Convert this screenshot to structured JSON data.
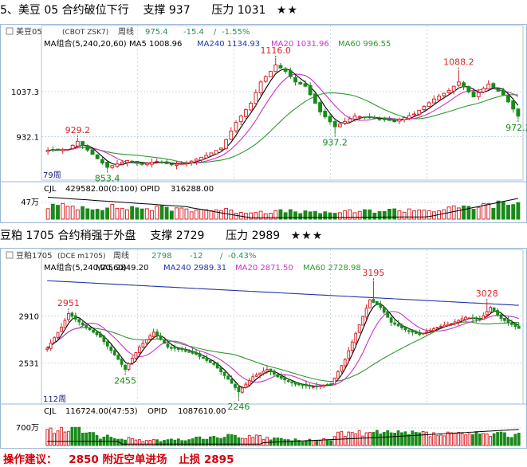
{
  "sections": [
    {
      "title_line": "5、美豆 05 合约破位下行",
      "support_text": "支撑 937",
      "resistance_text": "压力 1031",
      "stars": "★★"
    },
    {
      "title_line": "豆粕 1705 合约稍强于外盘",
      "support_text": "支撑 2729",
      "resistance_text": "压力 2989",
      "stars": "★★★"
    }
  ],
  "footer": {
    "label": "操作建议：",
    "advice": "2850 附近空单进场",
    "stop": "止损 2895"
  },
  "colors": {
    "up": "#d8262a",
    "down": "#1a8a1a",
    "ma5": "#000000",
    "ma20": "#cc33cc",
    "ma60": "#2d9a2d",
    "ma240": "#2233aa",
    "grid": "#9ab7d6",
    "chg": "#2e8b57"
  },
  "chart_data": [
    {
      "type": "candlestick",
      "instrument_label": "美豆05",
      "exchange_code": "(CBOT ZSK7)",
      "period": "周线",
      "last": "975.4",
      "change": "-15.4",
      "change_pct": "-1.55%",
      "ma_group_label": "MA组合(5,240,20,60)",
      "ma_labels": [
        "MA5 1008.96",
        "MA240 1134.93",
        "MA20 1031.96",
        "MA60 996.55"
      ],
      "y_ticks": [
        "1037.3",
        "932.1"
      ],
      "ylim": [
        830,
        1140
      ],
      "count_label": "79周",
      "annotations": [
        {
          "text": "929.2",
          "value": 929.2,
          "bar": 6,
          "kind": "high"
        },
        {
          "text": "853.4",
          "value": 853.4,
          "bar": 12,
          "kind": "low"
        },
        {
          "text": "1116.0",
          "value": 1116,
          "bar": 46,
          "kind": "high"
        },
        {
          "text": "937.2",
          "value": 937.2,
          "bar": 58,
          "kind": "low"
        },
        {
          "text": "1088.2",
          "value": 1088.2,
          "bar": 83,
          "kind": "high"
        },
        {
          "text": "972.2",
          "value": 972.2,
          "bar": 95,
          "kind": "low"
        }
      ],
      "volume_label": "CJL",
      "volume_value": "429582.00(0:100)",
      "oi_label": "OPID",
      "oi_value": "316288.00",
      "volume_tick": "47万",
      "key_points": [
        [
          0,
          900
        ],
        [
          4,
          902
        ],
        [
          6,
          921
        ],
        [
          10,
          880
        ],
        [
          12,
          860
        ],
        [
          16,
          876
        ],
        [
          19,
          867
        ],
        [
          22,
          874
        ],
        [
          25,
          866
        ],
        [
          28,
          870
        ],
        [
          32,
          888
        ],
        [
          35,
          905
        ],
        [
          38,
          965
        ],
        [
          41,
          1010
        ],
        [
          43,
          1060
        ],
        [
          45,
          1085
        ],
        [
          46,
          1100
        ],
        [
          48,
          1085
        ],
        [
          50,
          1060
        ],
        [
          52,
          1050
        ],
        [
          55,
          990
        ],
        [
          58,
          955
        ],
        [
          62,
          980
        ],
        [
          66,
          975
        ],
        [
          70,
          968
        ],
        [
          74,
          985
        ],
        [
          78,
          1020
        ],
        [
          81,
          1040
        ],
        [
          83,
          1060
        ],
        [
          86,
          1025
        ],
        [
          89,
          1055
        ],
        [
          92,
          1030
        ],
        [
          95,
          980
        ]
      ]
    },
    {
      "type": "candlestick",
      "instrument_label": "豆粕1705",
      "exchange_code": "(DCE m1705)",
      "period": "周线",
      "last": "2798",
      "change": "-12",
      "change_pct": "-0.43%",
      "ma_group_label": "MA组合(5,240,20,60)",
      "ma_labels": [
        "MA5 2849.20",
        "MA240 2989.31",
        "MA20 2871.50",
        "MA60 2728.98"
      ],
      "y_ticks": [
        "2910",
        "2531"
      ],
      "ylim": [
        2200,
        3280
      ],
      "count_label": "112周",
      "annotations": [
        {
          "text": "2951",
          "value": 2951,
          "bar": 6,
          "kind": "high"
        },
        {
          "text": "2455",
          "value": 2455,
          "bar": 22,
          "kind": "low"
        },
        {
          "text": "2246",
          "value": 2246,
          "bar": 54,
          "kind": "low"
        },
        {
          "text": "3195",
          "value": 3195,
          "bar": 92,
          "kind": "high"
        },
        {
          "text": "3028",
          "value": 3028,
          "bar": 124,
          "kind": "high"
        }
      ],
      "volume_label": "CJL",
      "volume_value": "116724.00(47:53)",
      "oi_label": "OPID",
      "oi_value": "1087610.00",
      "volume_tick": "700万",
      "key_points": [
        [
          0,
          2650
        ],
        [
          4,
          2820
        ],
        [
          6,
          2930
        ],
        [
          10,
          2840
        ],
        [
          15,
          2740
        ],
        [
          20,
          2560
        ],
        [
          22,
          2480
        ],
        [
          26,
          2660
        ],
        [
          30,
          2780
        ],
        [
          34,
          2660
        ],
        [
          38,
          2640
        ],
        [
          42,
          2600
        ],
        [
          47,
          2520
        ],
        [
          51,
          2400
        ],
        [
          54,
          2300
        ],
        [
          58,
          2420
        ],
        [
          62,
          2480
        ],
        [
          65,
          2420
        ],
        [
          70,
          2360
        ],
        [
          75,
          2340
        ],
        [
          80,
          2360
        ],
        [
          84,
          2560
        ],
        [
          88,
          2840
        ],
        [
          91,
          3040
        ],
        [
          94,
          2980
        ],
        [
          97,
          2860
        ],
        [
          101,
          2800
        ],
        [
          105,
          2760
        ],
        [
          110,
          2820
        ],
        [
          114,
          2850
        ],
        [
          118,
          2900
        ],
        [
          122,
          2880
        ],
        [
          125,
          2980
        ],
        [
          128,
          2890
        ],
        [
          133,
          2810
        ]
      ]
    }
  ]
}
